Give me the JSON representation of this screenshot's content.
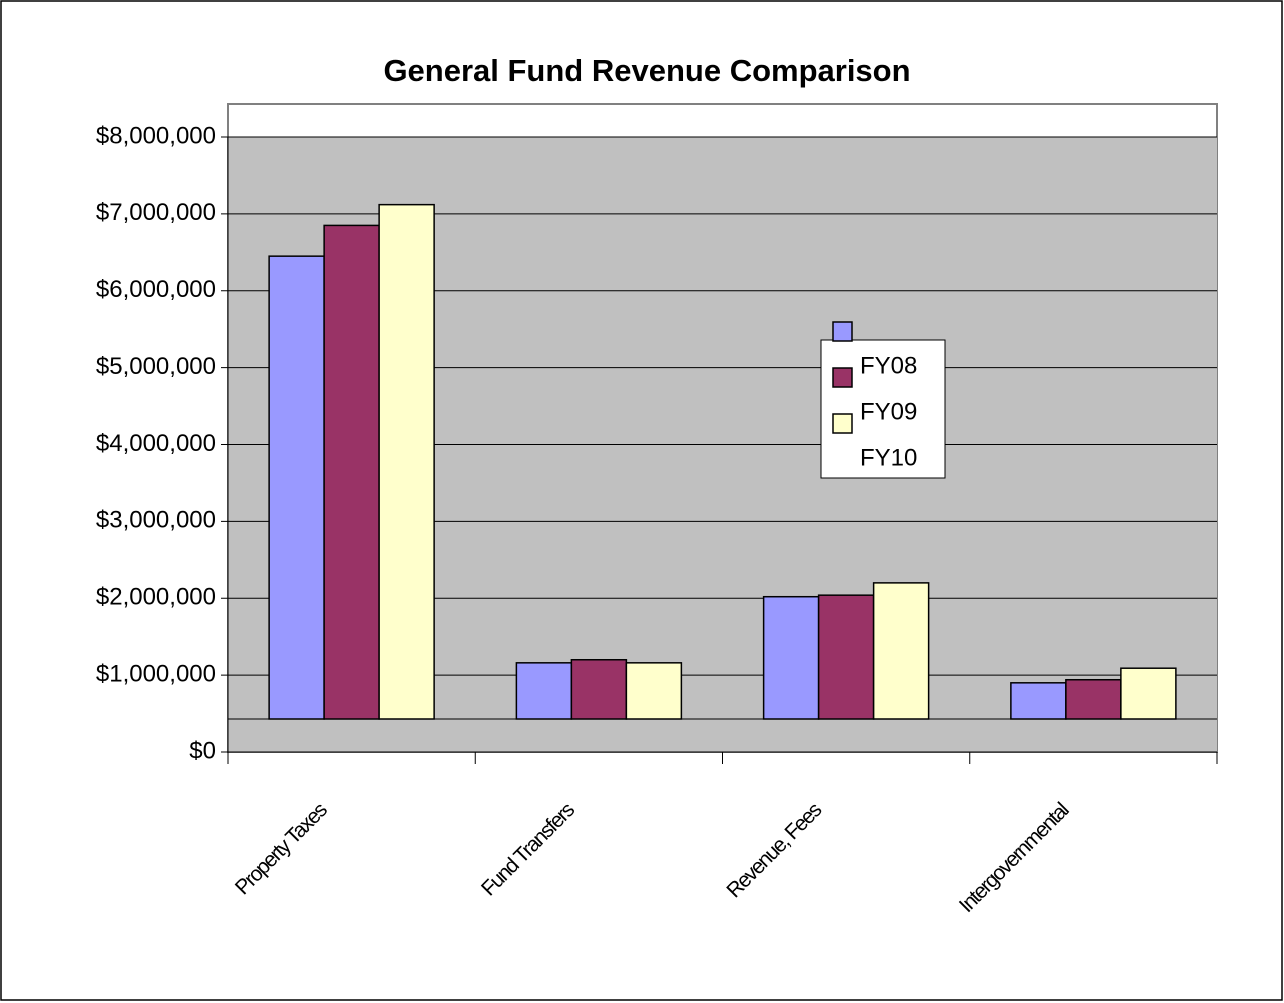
{
  "chart_data": {
    "type": "bar",
    "title": "General Fund Revenue Comparison",
    "categories": [
      "Property Taxes",
      "Fund Transfers",
      "Revenue, Fees",
      "Intergovernmental"
    ],
    "series": [
      {
        "name": "FY08",
        "color": "#9999ff",
        "values": [
          6450000,
          1160000,
          2020000,
          900000
        ]
      },
      {
        "name": "FY09",
        "color": "#993366",
        "values": [
          6850000,
          1200000,
          2040000,
          940000
        ]
      },
      {
        "name": "FY10",
        "color": "#ffffcc",
        "values": [
          7120000,
          1160000,
          2200000,
          1090000
        ]
      }
    ],
    "ylim": [
      0,
      8000000
    ],
    "yticks": [
      {
        "value": 0,
        "label": "$0"
      },
      {
        "value": 1000000,
        "label": "$1,000,000"
      },
      {
        "value": 2000000,
        "label": "$2,000,000"
      },
      {
        "value": 3000000,
        "label": "$3,000,000"
      },
      {
        "value": 4000000,
        "label": "$4,000,000"
      },
      {
        "value": 5000000,
        "label": "$5,000,000"
      },
      {
        "value": 6000000,
        "label": "$6,000,000"
      },
      {
        "value": 7000000,
        "label": "$7,000,000"
      },
      {
        "value": 8000000,
        "label": "$8,000,000"
      }
    ],
    "grid": true
  }
}
